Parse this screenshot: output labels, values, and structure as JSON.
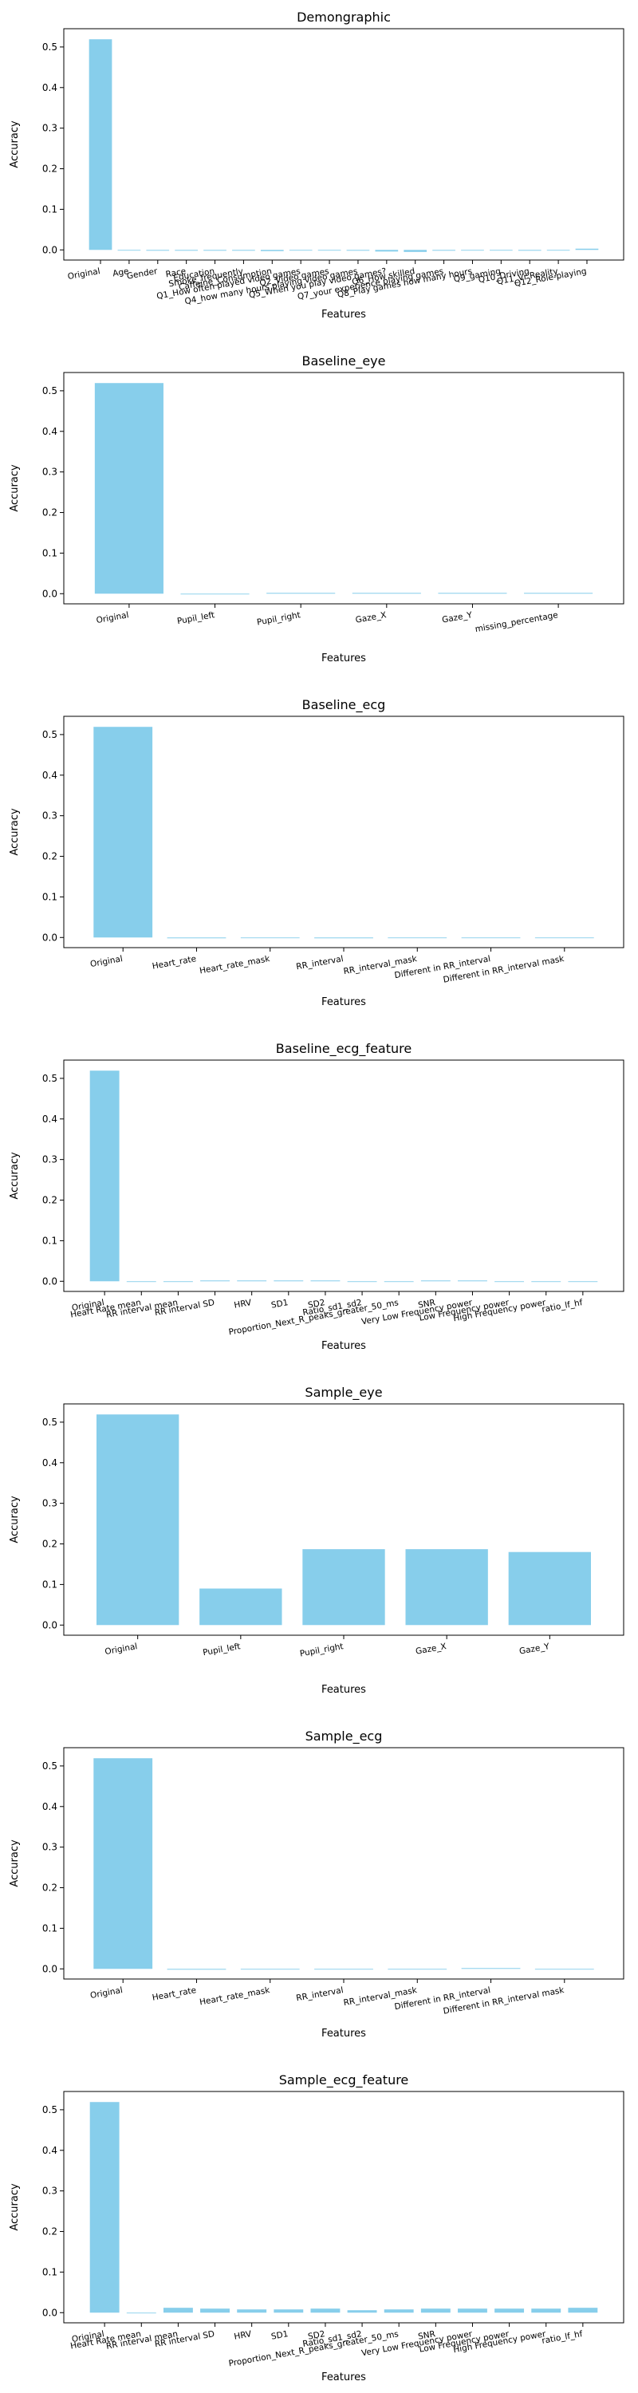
{
  "colors": {
    "bar": "#87CEEB",
    "axis": "#000000",
    "background": "#ffffff"
  },
  "chart_data": [
    {
      "type": "bar",
      "title": "Demongraphic",
      "xlabel": "Features",
      "ylabel": "Accuracy",
      "ylim": [
        -0.025,
        0.545
      ],
      "yticks": [
        "0.0",
        "0.1",
        "0.2",
        "0.3",
        "0.4",
        "0.5"
      ],
      "grid": false,
      "categories": [
        "Original",
        "Age",
        "Gender",
        "Race",
        "Education",
        "Smoke_frequently",
        "Caffeine_Consumption",
        "Q1_How often played video games",
        "Q2_Video games",
        "Q4_how many hours playing video games",
        "Q5_When you play video games?",
        "Q6_How skilled",
        "Q7_your experience playing games",
        "Q8_Play games how many hours",
        "Q9_gaming",
        "Q10_Driving",
        "Q11_Vr Reality",
        "Q12_Role-playing"
      ],
      "values": [
        0.519,
        0.0,
        -0.002,
        -0.002,
        -0.002,
        -0.002,
        -0.003,
        0.0,
        0.0,
        -0.002,
        -0.004,
        -0.005,
        -0.002,
        0.0,
        0.0,
        -0.002,
        -0.001,
        0.003
      ]
    },
    {
      "type": "bar",
      "title": "Baseline_eye",
      "xlabel": "Features",
      "ylabel": "Accuracy",
      "ylim": [
        -0.025,
        0.545
      ],
      "yticks": [
        "0.0",
        "0.1",
        "0.2",
        "0.3",
        "0.4",
        "0.5"
      ],
      "grid": false,
      "categories": [
        "Original",
        "Pupil_left",
        "Pupil_right",
        "Gaze_X",
        "Gaze_Y",
        "missing_percentage"
      ],
      "values": [
        0.519,
        0.0,
        0.002,
        0.002,
        0.002,
        0.002
      ]
    },
    {
      "type": "bar",
      "title": "Baseline_ecg",
      "xlabel": "Features",
      "ylabel": "Accuracy",
      "ylim": [
        -0.025,
        0.545
      ],
      "yticks": [
        "0.0",
        "0.1",
        "0.2",
        "0.3",
        "0.4",
        "0.5"
      ],
      "grid": false,
      "categories": [
        "Original",
        "Heart_rate",
        "Heart_rate_mask",
        "RR_interval",
        "RR_interval_mask",
        "Different in RR_interval",
        "Different in RR_interval mask"
      ],
      "values": [
        0.519,
        -0.002,
        0.0,
        -0.002,
        0.0,
        0.0,
        0.0
      ]
    },
    {
      "type": "bar",
      "title": "Baseline_ecg_feature",
      "xlabel": "Features",
      "ylabel": "Accuracy",
      "ylim": [
        -0.025,
        0.545
      ],
      "yticks": [
        "0.0",
        "0.1",
        "0.2",
        "0.3",
        "0.4",
        "0.5"
      ],
      "grid": false,
      "categories": [
        "Original",
        "Heart Rate mean",
        "RR interval mean",
        "RR interval SD",
        "HRV",
        "SD1",
        "SD2",
        "Ratio_sd1_sd2",
        "Proportion_Next_R_peaks_greater_50_ms",
        "SNR",
        "Very Low Frequency power",
        "Low Frequency power",
        "High Frequency power",
        "ratio_lf_hf"
      ],
      "values": [
        0.519,
        0.0,
        0.0,
        0.002,
        0.002,
        0.002,
        0.002,
        0.0,
        0.0,
        0.002,
        0.002,
        0.0,
        0.0,
        0.0
      ]
    },
    {
      "type": "bar",
      "title": "Sample_eye",
      "xlabel": "Features",
      "ylabel": "Accuracy",
      "ylim": [
        -0.025,
        0.545
      ],
      "yticks": [
        "0.0",
        "0.1",
        "0.2",
        "0.3",
        "0.4",
        "0.5"
      ],
      "grid": false,
      "categories": [
        "Original",
        "Pupil_left",
        "Pupil_right",
        "Gaze_X",
        "Gaze_Y"
      ],
      "values": [
        0.519,
        0.09,
        0.187,
        0.187,
        0.18
      ]
    },
    {
      "type": "bar",
      "title": "Sample_ecg",
      "xlabel": "Features",
      "ylabel": "Accuracy",
      "ylim": [
        -0.025,
        0.545
      ],
      "yticks": [
        "0.0",
        "0.1",
        "0.2",
        "0.3",
        "0.4",
        "0.5"
      ],
      "grid": false,
      "categories": [
        "Original",
        "Heart_rate",
        "Heart_rate_mask",
        "RR_interval",
        "RR_interval_mask",
        "Different in RR_interval",
        "Different in RR_interval mask"
      ],
      "values": [
        0.519,
        -0.002,
        0.0,
        0.0,
        0.0,
        0.002,
        0.0
      ]
    },
    {
      "type": "bar",
      "title": "Sample_ecg_feature",
      "xlabel": "Features",
      "ylabel": "Accuracy",
      "ylim": [
        -0.025,
        0.545
      ],
      "yticks": [
        "0.0",
        "0.1",
        "0.2",
        "0.3",
        "0.4",
        "0.5"
      ],
      "grid": false,
      "categories": [
        "Original",
        "Heart Rate mean",
        "RR interval mean",
        "RR interval SD",
        "HRV",
        "SD1",
        "SD2",
        "Ratio_sd1_sd2",
        "Proportion_Next_R_peaks_greater_50_ms",
        "SNR",
        "Very Low Frequency power",
        "Low Frequency power",
        "High Frequency power",
        "ratio_lf_hf"
      ],
      "values": [
        0.519,
        0.0,
        0.012,
        0.01,
        0.008,
        0.008,
        0.01,
        0.006,
        0.008,
        0.01,
        0.01,
        0.01,
        0.01,
        0.012
      ]
    }
  ]
}
